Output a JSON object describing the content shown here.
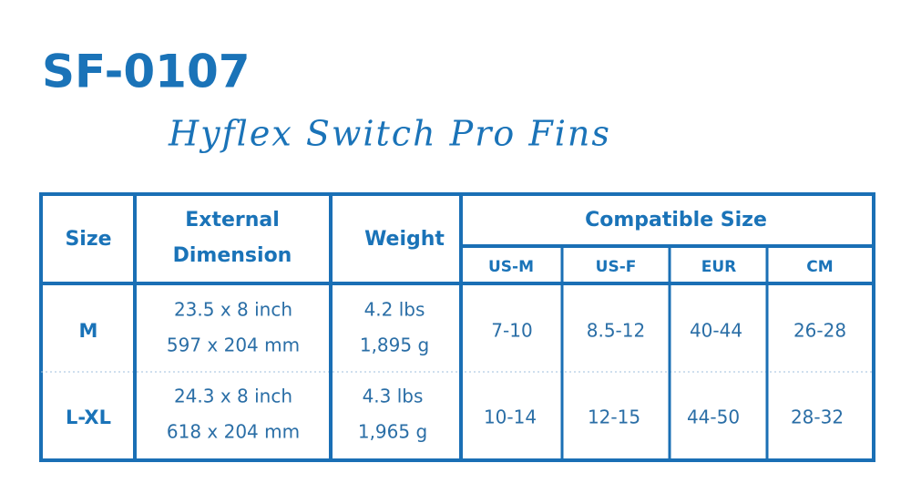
{
  "header": {
    "title": "SF-0107",
    "subtitle": "Hyflex Switch Pro Fins"
  },
  "table": {
    "columns": {
      "size": "Size",
      "external_dimension": [
        "External",
        "Dimension"
      ],
      "weight": "Weight",
      "compatible_size": "Compatible Size"
    },
    "subcolumns": [
      "US-M",
      "US-F",
      "EUR",
      "CM"
    ],
    "rows": [
      {
        "size": "M",
        "dimension": [
          "23.5 x 8 inch",
          "597 x 204 mm"
        ],
        "weight": [
          "4.2 lbs",
          "1,895 g"
        ],
        "compatible": [
          "7-10",
          "8.5-12",
          "40-44",
          "26-28"
        ]
      },
      {
        "size": "L-XL",
        "dimension": [
          "24.3 x 8 inch",
          "618 x 204 mm"
        ],
        "weight": [
          "4.3 lbs",
          "1,965 g"
        ],
        "compatible": [
          "10-14",
          "12-15",
          "44-50",
          "28-32"
        ]
      }
    ]
  }
}
